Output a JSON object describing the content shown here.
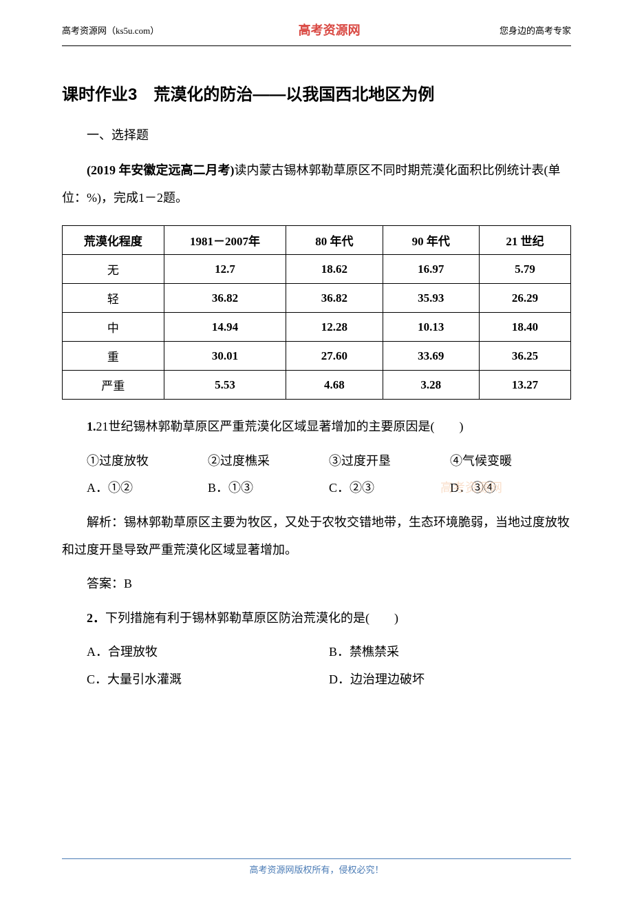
{
  "header": {
    "left": "高考资源网（ks5u.com）",
    "center": "高考资源网",
    "right": "您身边的高考专家"
  },
  "title": "课时作业3　荒漠化的防治——以我国西北地区为例",
  "section1": "一、选择题",
  "intro": {
    "prefix": "(2019 年安徽定远高二月考)",
    "text": "读内蒙古锡林郭勒草原区不同时期荒漠化面积比例统计表(单位：%)，完成1－2题。"
  },
  "table": {
    "columns": [
      "荒漠化程度",
      "1981－2007年",
      "80 年代",
      "90 年代",
      "21 世纪"
    ],
    "rows": [
      [
        "无",
        "12.7",
        "18.62",
        "16.97",
        "5.79"
      ],
      [
        "轻",
        "36.82",
        "36.82",
        "35.93",
        "26.29"
      ],
      [
        "中",
        "14.94",
        "12.28",
        "10.13",
        "18.40"
      ],
      [
        "重",
        "30.01",
        "27.60",
        "33.69",
        "36.25"
      ],
      [
        "严重",
        "5.53",
        "4.68",
        "3.28",
        "13.27"
      ]
    ],
    "col_widths": [
      "20%",
      "24%",
      "19%",
      "19%",
      "18%"
    ]
  },
  "q1": {
    "stem_num": "1.",
    "stem": "21世纪锡林郭勒草原区严重荒漠化区域显著增加的主要原因是(　　)",
    "circle_options": [
      "①过度放牧",
      "②过度樵采",
      "③过度开垦",
      "④气候变暖"
    ],
    "options": [
      "A．①②",
      "B．①③",
      "C．②③",
      "D．③④"
    ],
    "analysis_label": "解析：",
    "analysis": "锡林郭勒草原区主要为牧区，又处于农牧交错地带，生态环境脆弱，当地过度放牧和过度开垦导致严重荒漠化区域显著增加。",
    "answer_label": "答案：",
    "answer": "B"
  },
  "q2": {
    "stem_num": "2．",
    "stem": "下列措施有利于锡林郭勒草原区防治荒漠化的是(　　)",
    "options": [
      "A．合理放牧",
      "B．禁樵禁采",
      "C．大量引水灌溉",
      "D．边治理边破坏"
    ]
  },
  "watermark": "高考资源网",
  "footer": "高考资源网版权所有，侵权必究！",
  "colors": {
    "header_green": "#92b56b",
    "header_red": "#d94842",
    "footer_blue": "#4a7bb5",
    "watermark": "#f5c9a8"
  }
}
